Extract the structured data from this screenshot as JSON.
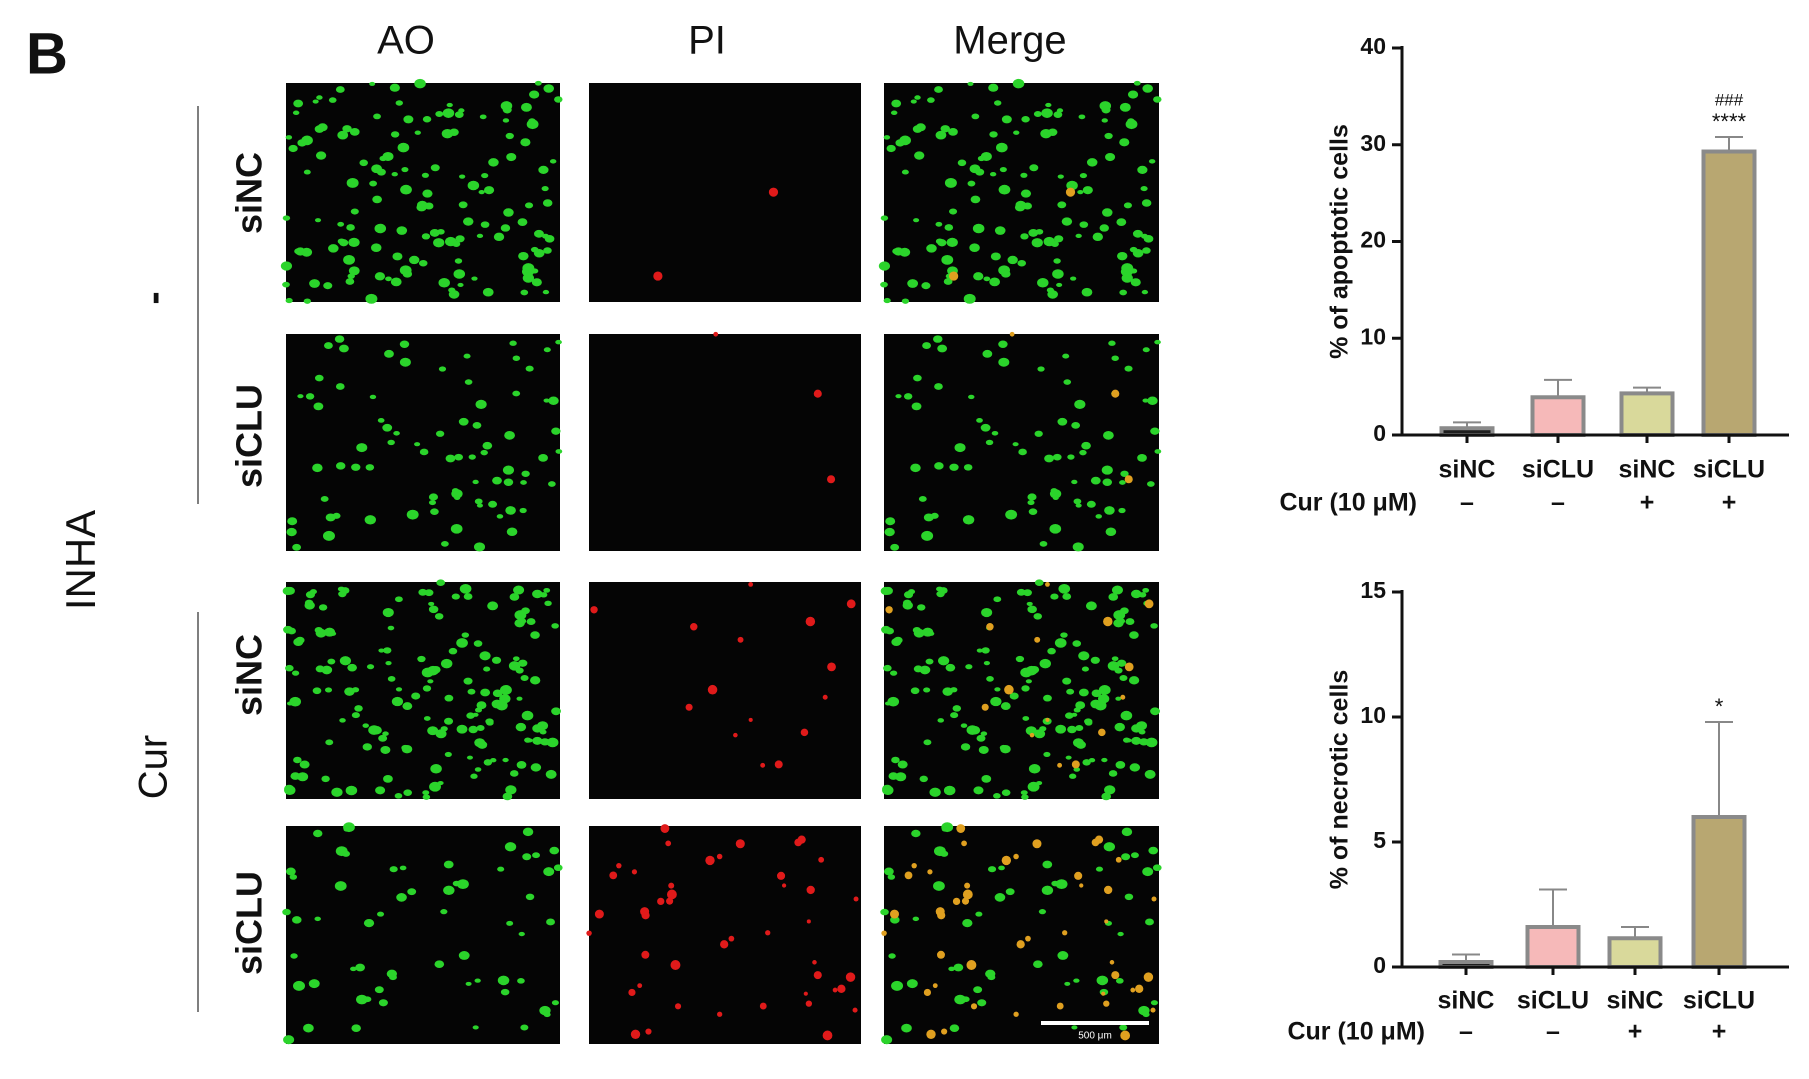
{
  "panel_label": "B",
  "column_headers": [
    "AO",
    "PI",
    "Merge"
  ],
  "row_group_label": "INHA",
  "groups": [
    {
      "label": "-",
      "rows": [
        "siNC",
        "siCLU"
      ]
    },
    {
      "label": "Cur",
      "rows": [
        "siNC",
        "siCLU"
      ]
    }
  ],
  "scale_bar": "500 μm",
  "chart_data": [
    {
      "type": "bar",
      "ylabel": "% of apoptotic cells",
      "categories": [
        "siNC",
        "siCLU",
        "siNC",
        "siCLU"
      ],
      "treatment_label": "Cur (10 μM)",
      "treatment": [
        "–",
        "–",
        "+",
        "+"
      ],
      "values": [
        0.7,
        3.9,
        4.3,
        29.3
      ],
      "errors": [
        0.6,
        1.8,
        0.6,
        1.5
      ],
      "sig": [
        null,
        null,
        null,
        "****"
      ],
      "sig2": [
        null,
        null,
        null,
        "###"
      ],
      "colors": [
        "#1e1e1e",
        "#f6b9b9",
        "#d9d99b",
        "#b8a771"
      ],
      "ylim": [
        0,
        40
      ],
      "yticks": [
        0,
        10,
        20,
        30,
        40
      ]
    },
    {
      "type": "bar",
      "ylabel": "% of necrotic cells",
      "categories": [
        "siNC",
        "siCLU",
        "siNC",
        "siCLU"
      ],
      "treatment_label": "Cur (10 μM)",
      "treatment": [
        "–",
        "–",
        "+",
        "+"
      ],
      "values": [
        0.2,
        1.6,
        1.15,
        6.0
      ],
      "errors": [
        0.3,
        1.5,
        0.45,
        3.8
      ],
      "sig": [
        null,
        null,
        null,
        "*"
      ],
      "colors": [
        "#1e1e1e",
        "#f6b9b9",
        "#d9d99b",
        "#b8a771"
      ],
      "ylim": [
        0,
        15
      ],
      "yticks": [
        0,
        5,
        10,
        15
      ]
    }
  ]
}
